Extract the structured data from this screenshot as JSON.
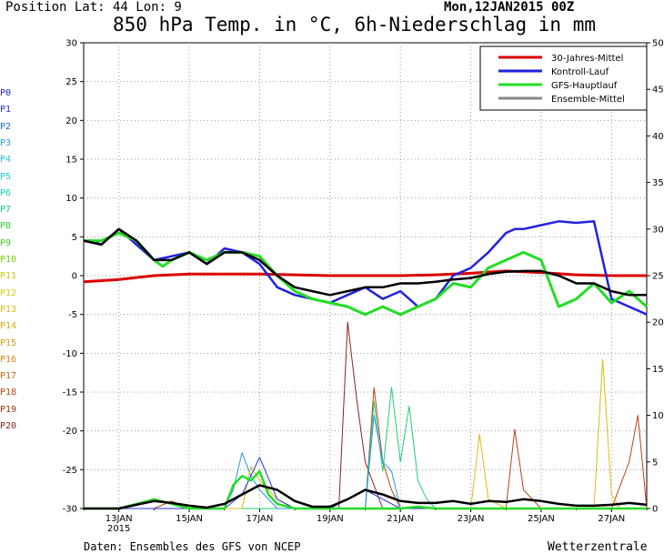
{
  "header": {
    "position_label": "Position   Lat: 44  Lon: 9",
    "run_date": "Mon,12JAN2015  00Z",
    "title": "850 hPa Temp. in °C, 6h-Niederschlag in mm"
  },
  "footer": {
    "source": "Daten: Ensembles des GFS von NCEP",
    "brand": "Wetterzentrale"
  },
  "members": [
    {
      "label": "P0",
      "color": "#2222cc"
    },
    {
      "label": "P1",
      "color": "#2233dd"
    },
    {
      "label": "P2",
      "color": "#2266dd"
    },
    {
      "label": "P3",
      "color": "#2299ee"
    },
    {
      "label": "P4",
      "color": "#22bbdd"
    },
    {
      "label": "P5",
      "color": "#22cccc"
    },
    {
      "label": "P6",
      "color": "#22ccaa"
    },
    {
      "label": "P7",
      "color": "#22cc77"
    },
    {
      "label": "P8",
      "color": "#33cc44"
    },
    {
      "label": "P9",
      "color": "#44cc22"
    },
    {
      "label": "P10",
      "color": "#77cc11"
    },
    {
      "label": "P11",
      "color": "#cccc11"
    },
    {
      "label": "P12",
      "color": "#ddcc11"
    },
    {
      "label": "P13",
      "color": "#ddbb11"
    },
    {
      "label": "P14",
      "color": "#ddaa11"
    },
    {
      "label": "P15",
      "color": "#dd9911"
    },
    {
      "label": "P16",
      "color": "#dd8811"
    },
    {
      "label": "P17",
      "color": "#cc6611"
    },
    {
      "label": "P18",
      "color": "#bb4411"
    },
    {
      "label": "P19",
      "color": "#993311"
    },
    {
      "label": "P20",
      "color": "#882222"
    }
  ],
  "chart_data": {
    "type": "line",
    "x_start": "2015-01-12 00Z",
    "x_end": "2015-01-28 00Z",
    "x_ticks": [
      {
        "at": "2015-01-13",
        "label": "13JAN",
        "sub": "2015"
      },
      {
        "at": "2015-01-15",
        "label": "15JAN",
        "sub": ""
      },
      {
        "at": "2015-01-17",
        "label": "17JAN",
        "sub": ""
      },
      {
        "at": "2015-01-19",
        "label": "19JAN",
        "sub": ""
      },
      {
        "at": "2015-01-21",
        "label": "21JAN",
        "sub": ""
      },
      {
        "at": "2015-01-23",
        "label": "23JAN",
        "sub": ""
      },
      {
        "at": "2015-01-25",
        "label": "25JAN",
        "sub": ""
      },
      {
        "at": "2015-01-27",
        "label": "27JAN",
        "sub": ""
      }
    ],
    "y_left": {
      "range": [
        -30,
        30
      ],
      "ticks": [
        -30,
        -25,
        -20,
        -15,
        -10,
        -5,
        0,
        5,
        10,
        15,
        20,
        25,
        30
      ]
    },
    "y_right": {
      "range": [
        0,
        50
      ],
      "ticks": [
        0,
        5,
        10,
        15,
        20,
        25,
        30,
        35,
        40,
        45,
        50
      ]
    },
    "grid": true,
    "legend": {
      "placement": "top-right",
      "entries": [
        {
          "label": "30-Jahres-Mittel",
          "color": "#dd0000"
        },
        {
          "label": "Kontroll-Lauf",
          "color": "#2222dd"
        },
        {
          "label": "GFS-Hauptlauf",
          "color": "#22dd22"
        },
        {
          "label": "Ensemble-Mittel",
          "color": "#888888"
        }
      ]
    },
    "series": [
      {
        "key": "climate",
        "color": "#dd0000",
        "width": 3,
        "x": [
          0,
          1,
          2,
          3,
          4,
          5,
          6,
          7,
          8,
          9,
          10,
          11,
          12,
          13,
          14,
          15,
          16
        ],
        "y": [
          -0.8,
          -0.5,
          0.0,
          0.2,
          0.2,
          0.2,
          0.1,
          0.0,
          0.0,
          0.0,
          0.1,
          0.3,
          0.6,
          0.4,
          0.1,
          0.0,
          0.0
        ]
      },
      {
        "key": "control",
        "color": "#2222dd",
        "width": 2.5,
        "x": [
          0,
          0.25,
          0.5,
          0.75,
          1,
          1.25,
          1.5,
          1.75,
          2,
          2.5,
          3,
          3.5,
          4,
          4.5,
          5,
          5.5,
          6,
          6.5,
          7,
          7.5,
          8,
          8.5,
          9,
          9.5,
          10,
          10.5,
          11,
          11.5,
          12,
          12.25,
          12.5,
          13,
          13.5,
          14,
          14.5,
          15,
          15.5,
          16
        ],
        "y": [
          4.5,
          4.5,
          4.0,
          5.0,
          6.0,
          5.0,
          4.0,
          3.0,
          2.0,
          2.5,
          3.0,
          1.5,
          3.5,
          3.0,
          1.5,
          -1.5,
          -2.5,
          -3.0,
          -3.5,
          -2.5,
          -1.5,
          -3.0,
          -2.0,
          -4.0,
          -3.0,
          0.0,
          1.0,
          3.0,
          5.5,
          6.0,
          6.0,
          6.5,
          7.0,
          6.8,
          7.0,
          -3.0,
          -4.0,
          -5.0
        ]
      },
      {
        "key": "main",
        "color": "#22dd22",
        "width": 3,
        "x": [
          0,
          0.5,
          1,
          1.5,
          2,
          2.25,
          2.5,
          3,
          3.5,
          4,
          4.5,
          5,
          5.5,
          6,
          6.5,
          7,
          7.5,
          8,
          8.5,
          9,
          9.5,
          10,
          10.5,
          11,
          11.5,
          12,
          12.5,
          13,
          13.5,
          14,
          14.5,
          15,
          15.5,
          16
        ],
        "y": [
          4.5,
          4.5,
          5.5,
          4.5,
          2.0,
          1.2,
          2.0,
          3.0,
          2.0,
          3.0,
          3.0,
          2.5,
          0.0,
          -2.0,
          -3.0,
          -3.5,
          -4.0,
          -5.0,
          -4.0,
          -5.0,
          -4.0,
          -3.0,
          -1.0,
          -1.5,
          1.0,
          2.0,
          3.0,
          2.0,
          -4.0,
          -3.0,
          -1.0,
          -3.5,
          -2.0,
          -4.0
        ]
      },
      {
        "key": "mean",
        "color": "#000000",
        "width": 2.5,
        "x": [
          0,
          0.5,
          1,
          1.5,
          2,
          2.5,
          3,
          3.5,
          4,
          4.5,
          5,
          5.5,
          6,
          6.5,
          7,
          7.5,
          8,
          8.5,
          9,
          9.5,
          10,
          10.5,
          11,
          11.5,
          12,
          12.5,
          13,
          13.5,
          14,
          14.5,
          15,
          15.5,
          16
        ],
        "y": [
          4.5,
          4.0,
          6.0,
          4.5,
          2.0,
          2.0,
          3.0,
          1.5,
          3.0,
          3.0,
          2.0,
          0.0,
          -1.5,
          -2.0,
          -2.5,
          -2.0,
          -1.5,
          -1.5,
          -1.0,
          -1.0,
          -0.8,
          -0.5,
          -0.3,
          0.2,
          0.5,
          0.6,
          0.6,
          0.0,
          -1.0,
          -1.0,
          -2.0,
          -2.5,
          -2.5
        ]
      },
      {
        "key": "precip-P20",
        "color": "#882222",
        "width": 1,
        "axis": "right",
        "x": [
          0,
          5,
          6,
          7,
          7.25,
          7.5,
          7.75,
          8,
          8.5,
          9,
          16
        ],
        "y": [
          0,
          0,
          0,
          0,
          0,
          20,
          12,
          5,
          0,
          0,
          0
        ]
      },
      {
        "key": "precip-P18",
        "color": "#bb4411",
        "width": 1,
        "axis": "right",
        "x": [
          0,
          2,
          2.5,
          3,
          8,
          8.25,
          8.5,
          8.75,
          9,
          12,
          12.25,
          12.5,
          13,
          15,
          15.5,
          15.75,
          16
        ],
        "y": [
          0,
          0,
          0.8,
          0,
          0,
          13,
          5,
          2,
          0,
          0,
          8.5,
          2,
          0,
          0,
          5,
          10,
          0
        ]
      },
      {
        "key": "precip-P7",
        "color": "#22cc77",
        "width": 1,
        "axis": "right",
        "x": [
          0,
          8,
          8.25,
          8.5,
          8.75,
          9,
          9.25,
          9.5,
          9.75,
          10,
          16
        ],
        "y": [
          0,
          0,
          11.5,
          4,
          13,
          5,
          11,
          3,
          1,
          0,
          0
        ]
      },
      {
        "key": "precip-P3",
        "color": "#2299ee",
        "width": 1,
        "axis": "right",
        "x": [
          0,
          4,
          4.25,
          4.5,
          4.75,
          5,
          5.5,
          8,
          8.25,
          8.5,
          8.75,
          9,
          16
        ],
        "y": [
          0,
          0,
          2,
          6,
          3.5,
          2,
          0,
          0,
          10,
          5,
          4,
          0,
          0
        ]
      },
      {
        "key": "precip-P13",
        "color": "#ddbb11",
        "width": 1,
        "axis": "right",
        "x": [
          0,
          4.5,
          4.75,
          5,
          5.25,
          5.5,
          6,
          11,
          11.25,
          11.5,
          12,
          13.5,
          14.5,
          14.75,
          15,
          15.25,
          16
        ],
        "y": [
          0,
          0,
          4.5,
          3,
          2,
          1,
          0,
          0,
          8,
          1,
          0,
          0,
          0,
          16,
          1.5,
          0,
          0
        ]
      },
      {
        "key": "precip-P1",
        "color": "#2233dd",
        "width": 1,
        "axis": "right",
        "x": [
          0,
          4,
          4.5,
          5,
          5.5,
          6,
          7,
          7.5,
          8,
          8.5,
          9,
          11,
          12,
          16
        ],
        "y": [
          0,
          0,
          1.5,
          5.5,
          1,
          0,
          0,
          1,
          2,
          1,
          0,
          0,
          0,
          0
        ]
      },
      {
        "key": "precip-main",
        "color": "#22dd22",
        "width": 2.5,
        "axis": "right",
        "x": [
          0,
          1,
          1.5,
          2,
          2.5,
          3,
          3.5,
          4,
          4.25,
          4.5,
          4.75,
          5,
          5.25,
          5.5,
          6,
          7,
          8,
          9,
          9.5,
          10,
          12,
          16
        ],
        "y": [
          0,
          0,
          0.5,
          1,
          0.5,
          0,
          0,
          0,
          2.5,
          3.5,
          3,
          4,
          1.5,
          0.5,
          0,
          0,
          0,
          0,
          0.2,
          0,
          0,
          0
        ]
      },
      {
        "key": "precip-mean",
        "color": "#000000",
        "width": 2.5,
        "axis": "right",
        "x": [
          0,
          1,
          1.5,
          2,
          2.5,
          3,
          3.5,
          4,
          4.5,
          5,
          5.5,
          6,
          6.5,
          7,
          7.5,
          8,
          8.5,
          9,
          9.5,
          10,
          10.5,
          11,
          11.5,
          12,
          12.5,
          13,
          13.5,
          14,
          14.5,
          15,
          15.5,
          16
        ],
        "y": [
          0,
          0,
          0.4,
          0.8,
          0.6,
          0.3,
          0.1,
          0.5,
          1.5,
          2.5,
          2.0,
          0.8,
          0.2,
          0.2,
          1.0,
          2.0,
          1.5,
          0.8,
          0.6,
          0.6,
          0.8,
          0.5,
          0.8,
          0.7,
          1.0,
          0.8,
          0.5,
          0.3,
          0.3,
          0.4,
          0.6,
          0.4
        ]
      }
    ]
  }
}
